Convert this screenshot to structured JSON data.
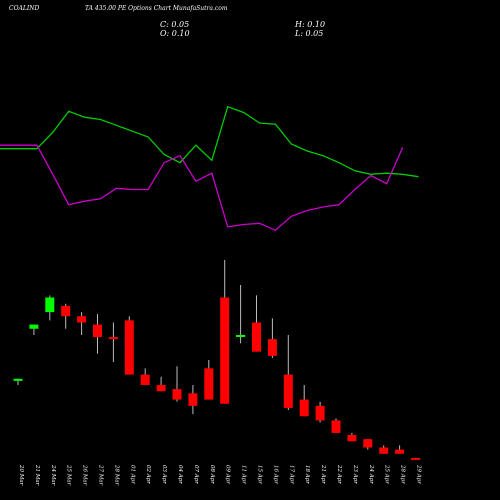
{
  "header": {
    "title": "COALIND",
    "subtitle": "TA 435.00  PE Options  Chart MunafaSutra.com",
    "close": "C: 0.05",
    "open": "O: 0.10",
    "high": "H: 0.10",
    "low": "L: 0.05"
  },
  "colors": {
    "background": "#000000",
    "up_candle": "#00ff00",
    "down_candle": "#ff0000",
    "green_line": "#00cc00",
    "magenta_line": "#cc00cc",
    "text": "#ffffff"
  },
  "chart_data": [
    {
      "type": "line",
      "categories": [
        "20 Mar",
        "21 Mar",
        "24 Mar",
        "25 Mar",
        "26 Mar",
        "27 Mar",
        "28 Mar",
        "01 Apr",
        "02 Apr",
        "03 Apr",
        "04 Apr",
        "07 Apr",
        "08 Apr",
        "09 Apr",
        "11 Apr",
        "15 Apr",
        "16 Apr",
        "17 Apr",
        "18 Apr",
        "21 Apr",
        "22 Apr",
        "23 Apr",
        "24 Apr",
        "25 Apr",
        "28 Apr",
        "29 Apr"
      ],
      "series": [
        {
          "color": "#00cc00",
          "values": [
            54,
            54,
            68,
            86,
            81,
            79,
            74,
            69,
            64,
            49,
            42,
            57,
            44,
            90,
            85,
            76,
            75,
            58,
            52,
            48,
            42,
            35,
            32,
            33,
            32,
            30
          ]
        },
        {
          "color": "#cc00cc",
          "values": [
            57,
            57,
            32,
            6,
            9,
            11,
            20,
            19,
            19,
            42,
            48,
            26,
            33,
            -13,
            -11,
            -10,
            -16,
            -4,
            1,
            4,
            6,
            19,
            31,
            24,
            55,
            null
          ]
        }
      ],
      "ylim": [
        -20,
        100
      ]
    },
    {
      "type": "candlestick",
      "categories": [
        "20 Mar",
        "21 Mar",
        "24 Mar",
        "25 Mar",
        "26 Mar",
        "27 Mar",
        "28 Mar",
        "01 Apr",
        "02 Apr",
        "03 Apr",
        "04 Apr",
        "07 Apr",
        "08 Apr",
        "09 Apr",
        "11 Apr",
        "15 Apr",
        "16 Apr",
        "17 Apr",
        "18 Apr",
        "21 Apr",
        "22 Apr",
        "23 Apr",
        "24 Apr",
        "25 Apr",
        "28 Apr",
        "29 Apr"
      ],
      "open": [
        3.8,
        6.3,
        7.1,
        7.4,
        6.9,
        6.5,
        5.9,
        6.7,
        4.1,
        3.6,
        3.4,
        3.2,
        4.4,
        7.8,
        6.0,
        6.6,
        5.8,
        4.1,
        2.9,
        2.6,
        1.9,
        1.2,
        1.0,
        0.6,
        0.5,
        0.1
      ],
      "high": [
        3.9,
        6.5,
        7.9,
        7.5,
        7.1,
        7.0,
        6.6,
        6.9,
        4.4,
        4.0,
        4.5,
        3.6,
        4.8,
        9.6,
        8.4,
        7.9,
        6.8,
        6.0,
        3.6,
        2.8,
        2.0,
        1.3,
        1.0,
        0.7,
        0.7,
        0.1
      ],
      "low": [
        3.6,
        6.0,
        6.7,
        6.3,
        6.0,
        5.1,
        4.7,
        4.1,
        3.6,
        3.3,
        2.8,
        2.2,
        2.9,
        2.7,
        5.6,
        5.2,
        4.9,
        2.4,
        2.1,
        1.8,
        1.3,
        0.9,
        0.5,
        0.3,
        0.3,
        0.0
      ],
      "close": [
        3.9,
        6.5,
        7.8,
        6.9,
        6.6,
        5.9,
        5.8,
        4.1,
        3.6,
        3.3,
        2.9,
        2.6,
        2.9,
        2.7,
        6.0,
        5.2,
        5.0,
        2.5,
        2.1,
        1.9,
        1.3,
        0.9,
        0.6,
        0.3,
        0.3,
        0.05
      ],
      "ylim": [
        0,
        9.6
      ]
    }
  ]
}
